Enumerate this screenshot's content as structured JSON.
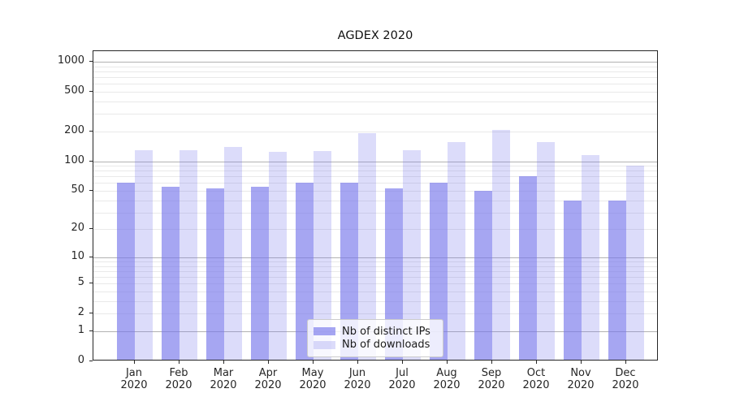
{
  "chart_data": {
    "type": "bar",
    "title": "AGDEX 2020",
    "categories": [
      "Jan",
      "Feb",
      "Mar",
      "Apr",
      "May",
      "Jun",
      "Jul",
      "Aug",
      "Sep",
      "Oct",
      "Nov",
      "Dec"
    ],
    "year_label": "2020",
    "series": [
      {
        "name": "Nb of distinct IPs",
        "base_color": "#7676EB",
        "alpha": 0.65,
        "values": [
          60,
          55,
          53,
          55,
          60,
          60,
          53,
          60,
          50,
          70,
          40,
          40
        ]
      },
      {
        "name": "Nb of downloads",
        "base_color": "#7676EB",
        "alpha": 0.26,
        "values": [
          130,
          130,
          140,
          124,
          127,
          190,
          130,
          156,
          205,
          155,
          115,
          91
        ]
      }
    ],
    "xlabel": "",
    "ylabel": "",
    "y_axis": {
      "scale": "symlog",
      "tick_labels": [
        "0",
        "1",
        "2",
        "5",
        "10",
        "20",
        "50",
        "100",
        "200",
        "500",
        "1000"
      ],
      "tick_values": [
        0,
        1,
        2,
        5,
        10,
        20,
        50,
        100,
        200,
        500,
        1000
      ],
      "major_grid_values": [
        1,
        10,
        100,
        1000
      ],
      "minor_grid_values": [
        2,
        3,
        4,
        5,
        6,
        7,
        8,
        9,
        20,
        30,
        40,
        50,
        60,
        70,
        80,
        90,
        200,
        300,
        400,
        500,
        600,
        700,
        800,
        900
      ],
      "ylim": [
        0,
        1275
      ]
    },
    "legend_position": "lower center",
    "grid": true
  },
  "colors": {
    "major_grid": "#b2b2b2",
    "minor_grid": "#e9e9e9",
    "axis": "#262626",
    "title_text": "#111111",
    "tick_text": "#262626"
  }
}
